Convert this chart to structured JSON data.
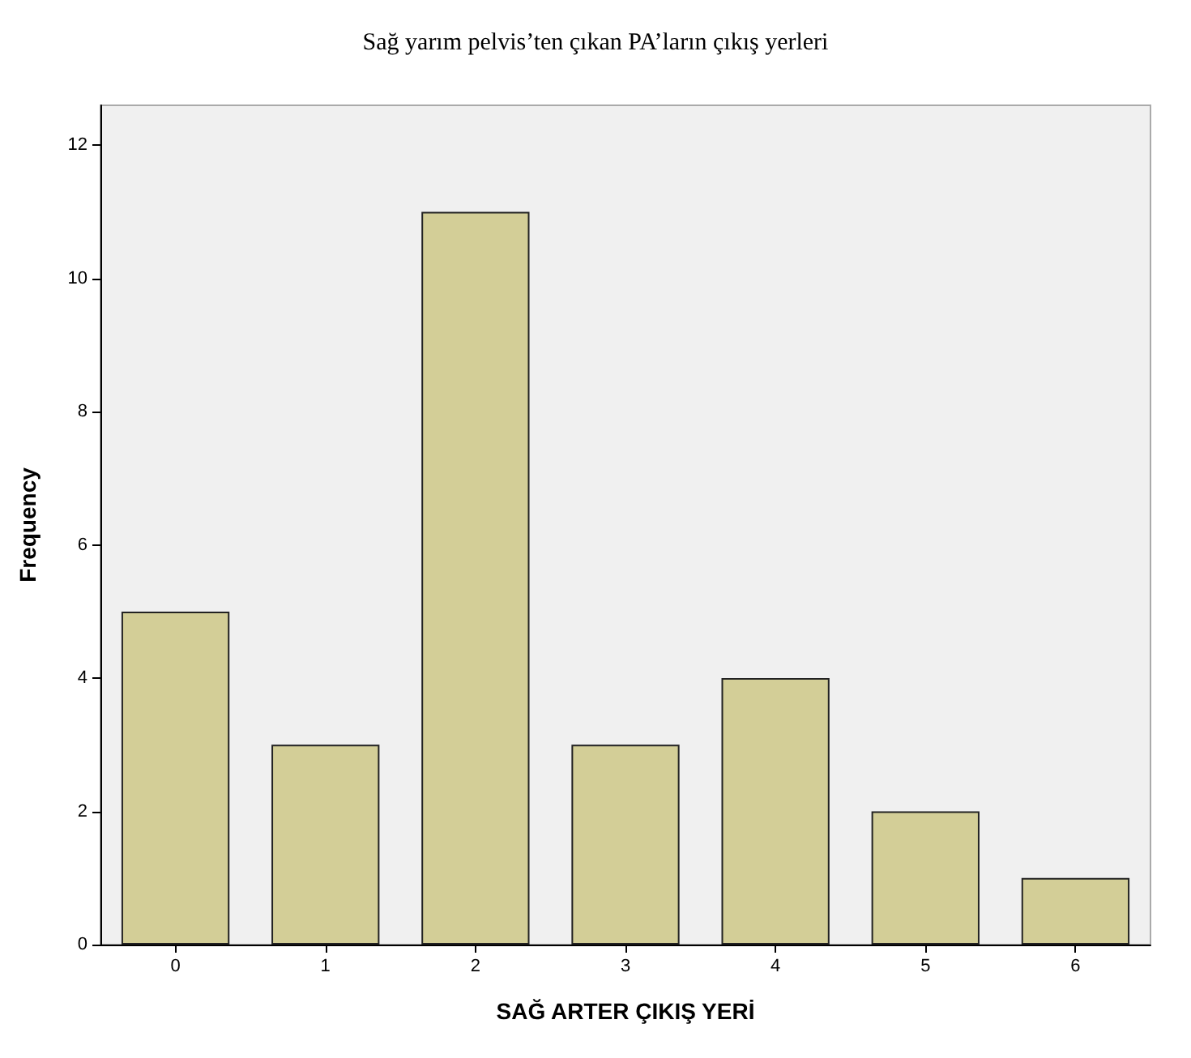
{
  "chart_data": {
    "type": "bar",
    "title": "Sağ yarım pelvis’ten çıkan PA’ların çıkış yerleri",
    "xlabel": "SAĞ ARTER ÇIKIŞ YERİ",
    "ylabel": "Frequency",
    "categories": [
      "0",
      "1",
      "2",
      "3",
      "4",
      "5",
      "6"
    ],
    "values": [
      5,
      3,
      11,
      3,
      4,
      2,
      1
    ],
    "color": "#d3ce97",
    "ylim": [
      0,
      12.6
    ],
    "yticks": [
      0,
      2,
      4,
      6,
      8,
      10,
      12
    ]
  }
}
